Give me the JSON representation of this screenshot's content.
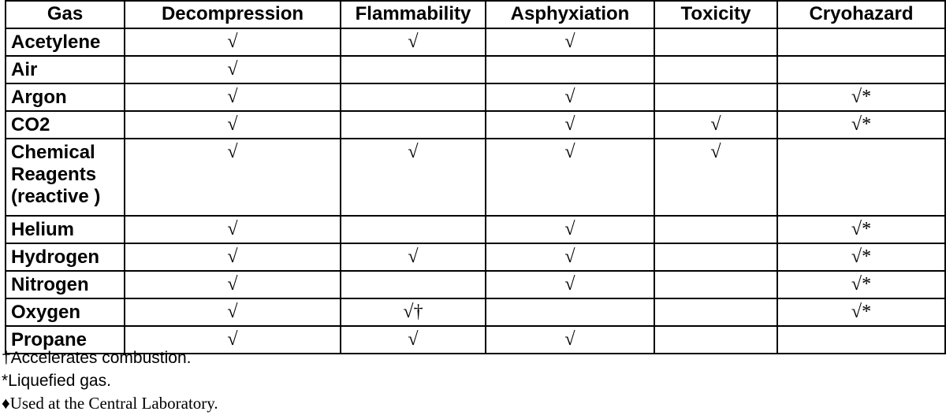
{
  "table": {
    "headers": [
      "Gas",
      "Decompression",
      "Flammability",
      "Asphyxiation",
      "Toxicity",
      "Cryohazard"
    ],
    "rows": [
      {
        "gas": "Acetylene",
        "cells": [
          "√",
          "√",
          "√",
          "",
          ""
        ]
      },
      {
        "gas": "Air",
        "cells": [
          "√",
          "",
          "",
          "",
          ""
        ]
      },
      {
        "gas": "Argon",
        "cells": [
          "√",
          "",
          "√",
          "",
          "√*"
        ]
      },
      {
        "gas": "CO2",
        "cells": [
          "√",
          "",
          "√",
          "√",
          "√*"
        ]
      },
      {
        "gas": "Chemical Reagents (reactive )",
        "cells": [
          "√",
          "√",
          "√",
          "√",
          ""
        ]
      },
      {
        "gas": "Helium",
        "cells": [
          "√",
          "",
          "√",
          "",
          "√*"
        ]
      },
      {
        "gas": "Hydrogen",
        "cells": [
          "√",
          "√",
          "√",
          "",
          "√*"
        ]
      },
      {
        "gas": "Nitrogen",
        "cells": [
          "√",
          "",
          "√",
          "",
          "√*"
        ]
      },
      {
        "gas": "Oxygen",
        "cells": [
          "√",
          "√†",
          "",
          "",
          "√*"
        ]
      },
      {
        "gas": "Propane",
        "cells": [
          "√",
          "√",
          "√",
          "",
          ""
        ]
      }
    ]
  },
  "footnotes": [
    "†Accelerates combustion.",
    "*Liquefied gas.",
    "♦Used at the Central Laboratory."
  ]
}
